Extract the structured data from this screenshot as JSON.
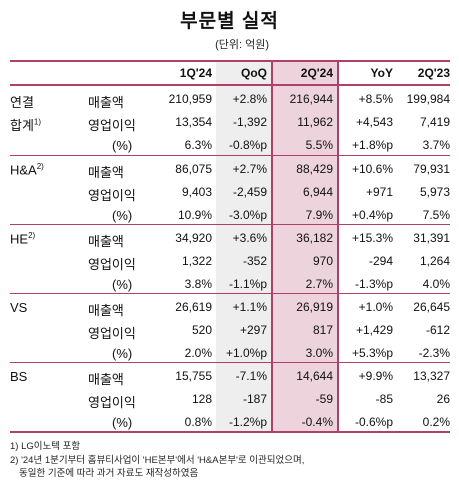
{
  "title": "부문별 실적",
  "unit": "(단위: 억원)",
  "columns": [
    "1Q'24",
    "QoQ",
    "2Q'24",
    "YoY",
    "2Q'23"
  ],
  "segments": [
    {
      "name": "연결",
      "name2": "합계",
      "sup2": "1)",
      "rows": [
        {
          "metric": "매출액",
          "values": [
            "210,959",
            "+2.8%",
            "216,944",
            "+8.5%",
            "199,984"
          ]
        },
        {
          "metric": "영업이익",
          "values": [
            "13,354",
            "-1,392",
            "11,962",
            "+4,543",
            "7,419"
          ]
        },
        {
          "metric": "(%)",
          "values": [
            "6.3%",
            "-0.8%p",
            "5.5%",
            "+1.8%p",
            "3.7%"
          ]
        }
      ]
    },
    {
      "name": "H&A",
      "sup": "2)",
      "rows": [
        {
          "metric": "매출액",
          "values": [
            "86,075",
            "+2.7%",
            "88,429",
            "+10.6%",
            "79,931"
          ]
        },
        {
          "metric": "영업이익",
          "values": [
            "9,403",
            "-2,459",
            "6,944",
            "+971",
            "5,973"
          ]
        },
        {
          "metric": "(%)",
          "values": [
            "10.9%",
            "-3.0%p",
            "7.9%",
            "+0.4%p",
            "7.5%"
          ]
        }
      ]
    },
    {
      "name": "HE",
      "sup": "2)",
      "rows": [
        {
          "metric": "매출액",
          "values": [
            "34,920",
            "+3.6%",
            "36,182",
            "+15.3%",
            "31,391"
          ]
        },
        {
          "metric": "영업이익",
          "values": [
            "1,322",
            "-352",
            "970",
            "-294",
            "1,264"
          ]
        },
        {
          "metric": "(%)",
          "values": [
            "3.8%",
            "-1.1%p",
            "2.7%",
            "-1.3%p",
            "4.0%"
          ]
        }
      ]
    },
    {
      "name": "VS",
      "rows": [
        {
          "metric": "매출액",
          "values": [
            "26,619",
            "+1.1%",
            "26,919",
            "+1.0%",
            "26,645"
          ]
        },
        {
          "metric": "영업이익",
          "values": [
            "520",
            "+297",
            "817",
            "+1,429",
            "-612"
          ]
        },
        {
          "metric": "(%)",
          "values": [
            "2.0%",
            "+1.0%p",
            "3.0%",
            "+5.3%p",
            "-2.3%"
          ]
        }
      ]
    },
    {
      "name": "BS",
      "rows": [
        {
          "metric": "매출액",
          "values": [
            "15,755",
            "-7.1%",
            "14,644",
            "+9.9%",
            "13,327"
          ]
        },
        {
          "metric": "영업이익",
          "values": [
            "128",
            "-187",
            "-59",
            "-85",
            "26"
          ]
        },
        {
          "metric": "(%)",
          "values": [
            "0.8%",
            "-1.2%p",
            "-0.4%",
            "-0.6%p",
            "0.2%"
          ]
        }
      ]
    }
  ],
  "footnotes": [
    "1) LG이노텍 포함",
    "2) '24년 1분기부터 홈뷰티사업이 'HE본부'에서 'H&A본부'로 이관되었으며,",
    "동일한 기준에 따라 과거 자료도 재작성하였음"
  ]
}
